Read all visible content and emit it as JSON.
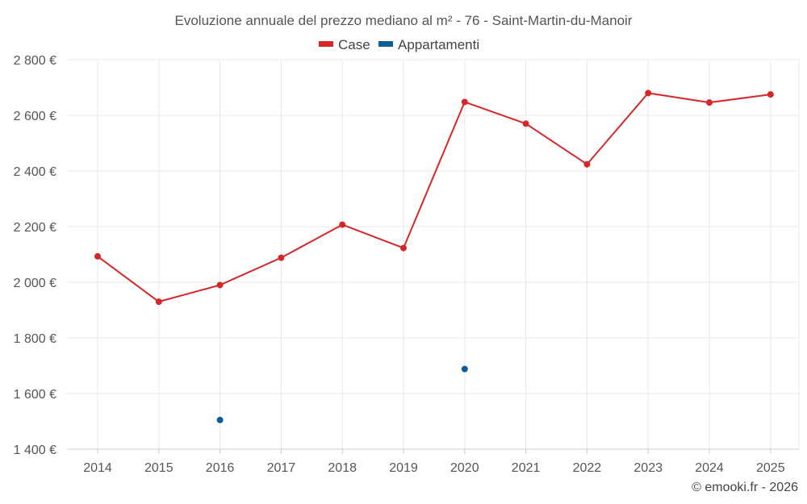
{
  "chart_data": {
    "type": "line",
    "title": "Evoluzione annuale del prezzo mediano al m² - 76 - Saint-Martin-du-Manoir",
    "categories": [
      "2014",
      "2015",
      "2016",
      "2017",
      "2018",
      "2019",
      "2020",
      "2021",
      "2022",
      "2023",
      "2024",
      "2025"
    ],
    "yticks": [
      1400,
      1600,
      1800,
      2000,
      2200,
      2400,
      2600,
      2800
    ],
    "ytick_labels": [
      "1 400 €",
      "1 600 €",
      "1 800 €",
      "2 000 €",
      "2 200 €",
      "2 400 €",
      "2 600 €",
      "2 800 €"
    ],
    "ylim": [
      1400,
      2800
    ],
    "grid": true,
    "legend_position": "top-center",
    "series": [
      {
        "name": "Case",
        "color": "#d62728",
        "line": true,
        "values": [
          2093,
          1930,
          1990,
          2088,
          2207,
          2123,
          2648,
          2570,
          2424,
          2680,
          2646,
          2675
        ]
      },
      {
        "name": "Appartamenti",
        "color": "#0b5e96",
        "line": false,
        "values": [
          null,
          null,
          1505,
          null,
          null,
          null,
          1688,
          null,
          null,
          null,
          null,
          null
        ]
      }
    ],
    "credit": "© emooki.fr - 2026"
  }
}
